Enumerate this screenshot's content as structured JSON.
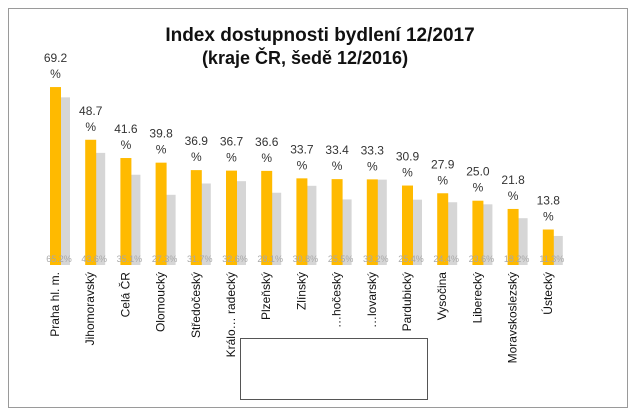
{
  "chart_data": {
    "type": "bar",
    "title": "Index dostupnosti bydlení 12/2017",
    "subtitle": "(kraje ČR, šedě 12/2016)",
    "categories": [
      "Praha hl. m.",
      "Jihomoravský",
      "Celá ČR",
      "Olomoucký",
      "Středočeský",
      "Královéhradecký",
      "Plzeňský",
      "Zlínský",
      "Jihočeský",
      "Karlovarský",
      "Pardubický",
      "Vysočina",
      "Liberecký",
      "Moravskoslezský",
      "Ústecký"
    ],
    "category_labels_visible": [
      "Praha hl. m.",
      "Jihomoravský",
      "Celá ČR",
      "Olomoucký",
      "Středočeský",
      "Králo… radecký",
      "Plzeňský",
      "Zlínský",
      "…hočeský",
      "…lovarský",
      "Pardubický",
      "Vysočina",
      "Liberecký",
      "Moravskoslezský",
      "Ústecký"
    ],
    "series": [
      {
        "name": "12/2017",
        "values": [
          69.2,
          48.7,
          41.6,
          39.8,
          36.9,
          36.7,
          36.6,
          33.7,
          33.4,
          33.3,
          30.9,
          27.9,
          25.0,
          21.8,
          13.8
        ],
        "labels": [
          "69.2 %",
          "48.7 %",
          "41.6 %",
          "39.8 %",
          "36.9 %",
          "36.7 %",
          "36.6 %",
          "33.7 %",
          "33.4 %",
          "33.3 %",
          "30.9 %",
          "27.9 %",
          "25.0 %",
          "21.8 %",
          "13.8 %"
        ]
      },
      {
        "name": "12/2016",
        "values": [
          65.2,
          43.6,
          35.1,
          27.3,
          31.7,
          32.6,
          28.1,
          30.8,
          25.5,
          33.2,
          25.4,
          24.4,
          23.6,
          18.2,
          11.3
        ],
        "labels": [
          "65.2%",
          "43.6%",
          "35.1%",
          "27.3%",
          "31.7%",
          "32.6%",
          "28.1%",
          "30.8%",
          "25.5%",
          "33.2%",
          "25.4%",
          "24.4%",
          "23.6%",
          "18.2%",
          "11.3%"
        ]
      }
    ],
    "ylim": [
      0,
      70
    ],
    "grid": false,
    "legend": "none",
    "colors": {
      "current": "#FFBA00",
      "previous": "#D6D6D6",
      "value_label": "#333333",
      "inner_label": "#A8A8A8"
    }
  }
}
